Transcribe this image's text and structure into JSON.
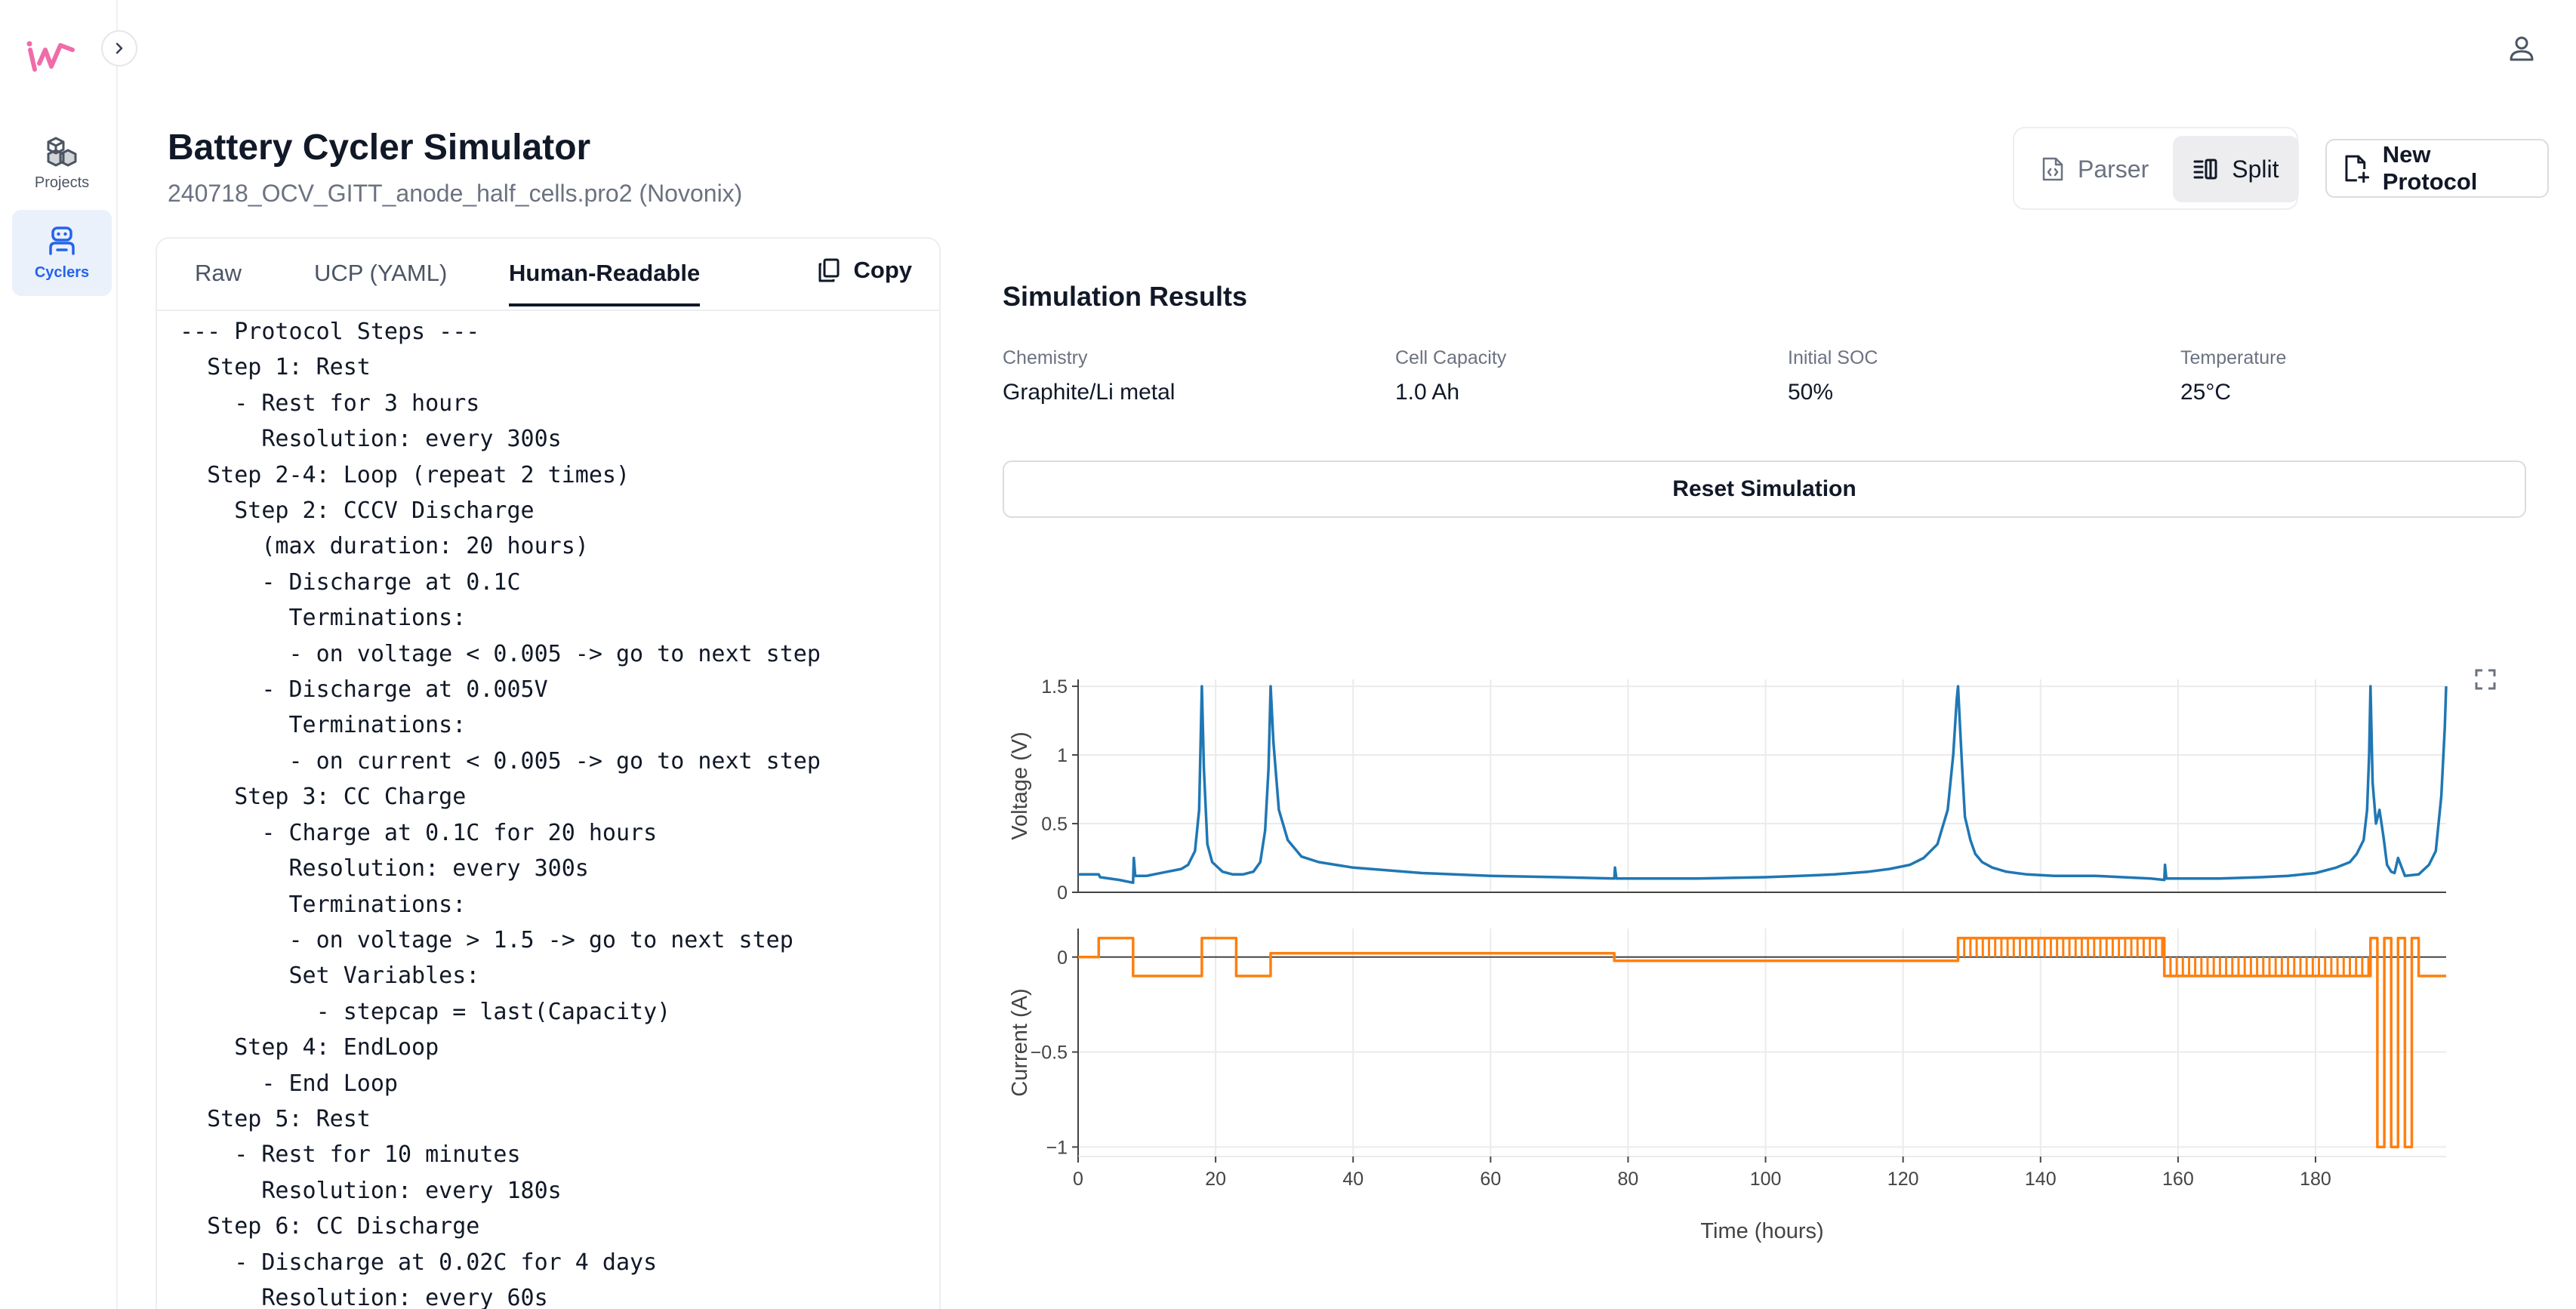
{
  "sidebar": {
    "items": [
      {
        "label": "Projects",
        "icon": "cubes-icon"
      },
      {
        "label": "Cyclers",
        "icon": "robot-icon"
      }
    ]
  },
  "header": {
    "title": "Battery Cycler Simulator",
    "subtitle": "240718_OCV_GITT_anode_half_cells.pro2 (Novonix)",
    "mode_parser": "Parser",
    "mode_split": "Split",
    "new_protocol": "New Protocol"
  },
  "editor": {
    "tabs": [
      "Raw",
      "UCP (YAML)",
      "Human-Readable"
    ],
    "active_tab": "Human-Readable",
    "copy_label": "Copy",
    "lines": [
      "--- Protocol Steps ---",
      "  Step 1: Rest",
      "    - Rest for 3 hours",
      "      Resolution: every 300s",
      "  Step 2-4: Loop (repeat 2 times)",
      "    Step 2: CCCV Discharge",
      "      (max duration: 20 hours)",
      "      - Discharge at 0.1C",
      "        Terminations:",
      "        - on voltage < 0.005 -> go to next step",
      "      - Discharge at 0.005V",
      "        Terminations:",
      "        - on current < 0.005 -> go to next step",
      "    Step 3: CC Charge",
      "      - Charge at 0.1C for 20 hours",
      "        Resolution: every 300s",
      "        Terminations:",
      "        - on voltage > 1.5 -> go to next step",
      "        Set Variables:",
      "          - stepcap = last(Capacity)",
      "    Step 4: EndLoop",
      "      - End Loop",
      "  Step 5: Rest",
      "    - Rest for 10 minutes",
      "      Resolution: every 180s",
      "  Step 6: CC Discharge",
      "    - Discharge at 0.02C for 4 days",
      "      Resolution: every 60s"
    ]
  },
  "results": {
    "title": "Simulation Results",
    "meta": [
      {
        "label": "Chemistry",
        "value": "Graphite/Li metal"
      },
      {
        "label": "Cell Capacity",
        "value": "1.0 Ah"
      },
      {
        "label": "Initial SOC",
        "value": "50%"
      },
      {
        "label": "Temperature",
        "value": "25°C"
      }
    ],
    "reset_label": "Reset Simulation"
  },
  "colors": {
    "voltage": "#1f77b4",
    "current": "#ff7f0e",
    "accent": "#2563eb",
    "logo": "#f06ba8"
  },
  "chart_data": {
    "type": "line",
    "xlabel": "Time (hours)",
    "xlim": [
      0,
      199
    ],
    "xticks": [
      0,
      20,
      40,
      60,
      80,
      100,
      120,
      140,
      160,
      180
    ],
    "grid": true,
    "subplots": [
      {
        "ylabel": "Voltage (V)",
        "ylim": [
          0,
          1.55
        ],
        "yticks": [
          0,
          0.5,
          1,
          1.5
        ],
        "series": [
          {
            "x": [
              0,
              3,
              3.2,
              6,
              8,
              8.1,
              8.3,
              10,
              11,
              13,
              15,
              16,
              17,
              17.6,
              18,
              18.3,
              18.8,
              19.5,
              21,
              22.5,
              24,
              25.5,
              26.5,
              27.2,
              27.7,
              28,
              28.4,
              29.2,
              30.5,
              32.5,
              35,
              40,
              50,
              60,
              70,
              78,
              78.1,
              78.3,
              80,
              90,
              100,
              105,
              110,
              115,
              118,
              121,
              123,
              125,
              126.5,
              127.3,
              127.8,
              128,
              128.3,
              128.6,
              129,
              129.8,
              130.5,
              131.5,
              133,
              135,
              138,
              142,
              148,
              152,
              156,
              158,
              158.1,
              158.3,
              160,
              166,
              172,
              176,
              180,
              183,
              185,
              186,
              187,
              187.5,
              187.8,
              188,
              188.3,
              188.8,
              189.3,
              189.9,
              190.4,
              191,
              191.5,
              192,
              193,
              195,
              196.5,
              197.5,
              198.3,
              198.8,
              199
            ],
            "y": [
              0.13,
              0.13,
              0.11,
              0.09,
              0.07,
              0.25,
              0.12,
              0.12,
              0.13,
              0.15,
              0.17,
              0.2,
              0.3,
              0.6,
              1.5,
              0.9,
              0.35,
              0.22,
              0.15,
              0.13,
              0.13,
              0.15,
              0.22,
              0.45,
              0.9,
              1.5,
              1.1,
              0.6,
              0.38,
              0.26,
              0.22,
              0.18,
              0.14,
              0.12,
              0.11,
              0.1,
              0.18,
              0.1,
              0.1,
              0.1,
              0.11,
              0.12,
              0.13,
              0.15,
              0.17,
              0.2,
              0.25,
              0.35,
              0.6,
              1.0,
              1.4,
              1.5,
              1.2,
              0.9,
              0.55,
              0.38,
              0.28,
              0.22,
              0.18,
              0.15,
              0.13,
              0.12,
              0.12,
              0.11,
              0.1,
              0.09,
              0.2,
              0.1,
              0.1,
              0.1,
              0.11,
              0.12,
              0.14,
              0.18,
              0.22,
              0.28,
              0.38,
              0.6,
              1.0,
              1.5,
              0.8,
              0.5,
              0.6,
              0.4,
              0.2,
              0.15,
              0.14,
              0.25,
              0.12,
              0.13,
              0.2,
              0.3,
              0.7,
              1.2,
              1.5
            ]
          }
        ]
      },
      {
        "ylabel": "Current (A)",
        "ylim": [
          -1.05,
          0.15
        ],
        "yticks": [
          -1,
          -0.5,
          0
        ],
        "series": [
          {
            "x": [
              0,
              3,
              3,
              8,
              8,
              18,
              18,
              23,
              23,
              28,
              28,
              78,
              78,
              128,
              128,
              158,
              158,
              188,
              188,
              189,
              189,
              190,
              190,
              191,
              191,
              192,
              192,
              193,
              193,
              194,
              194,
              195,
              195,
              199
            ],
            "y": [
              0,
              0,
              0.1,
              0.1,
              -0.1,
              -0.1,
              0.1,
              0.1,
              -0.1,
              -0.1,
              0.02,
              0.02,
              -0.02,
              -0.02,
              0.1,
              0.1,
              -0.1,
              -0.1,
              0.1,
              0.1,
              -1.0,
              -1.0,
              0.1,
              0.1,
              -1.0,
              -1.0,
              0.1,
              0.1,
              -1.0,
              -1.0,
              0.1,
              0.1,
              -0.1,
              -0.1
            ]
          }
        ]
      }
    ]
  }
}
